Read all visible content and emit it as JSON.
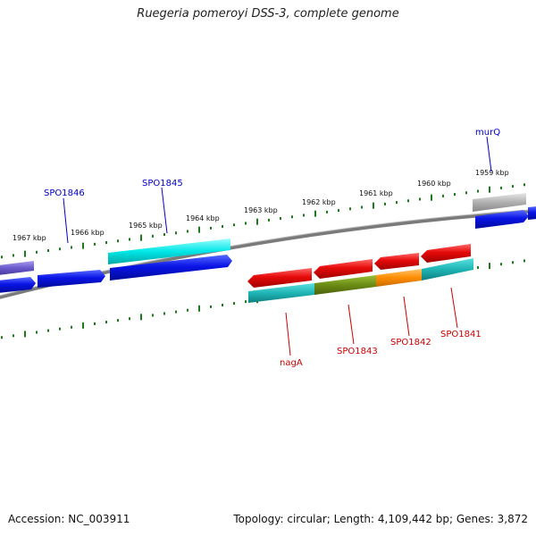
{
  "title": "Ruegeria pomeroyi DSS-3, complete genome",
  "footer": {
    "accession": "Accession: NC_003911",
    "summary": "Topology: circular; Length: 4,109,442 bp; Genes: 3,872"
  },
  "ruler_labels": [
    "1967 kbp",
    "1966 kbp",
    "1965 kbp",
    "1964 kbp",
    "1963 kbp",
    "1962 kbp",
    "1961 kbp",
    "1960 kbp",
    "1959 kbp"
  ],
  "gene_labels": [
    {
      "text": "SPO1846",
      "strand": "forward",
      "color": "#0000cc"
    },
    {
      "text": "SPO1845",
      "strand": "forward",
      "color": "#0000cc"
    },
    {
      "text": "murQ",
      "strand": "forward",
      "color": "#0000cc"
    },
    {
      "text": "nagA",
      "strand": "reverse",
      "color": "#cc0000"
    },
    {
      "text": "SPO1843",
      "strand": "reverse",
      "color": "#cc0000"
    },
    {
      "text": "SPO1842",
      "strand": "reverse",
      "color": "#cc0000"
    },
    {
      "text": "SPO1841",
      "strand": "reverse",
      "color": "#cc0000"
    }
  ],
  "colors": {
    "forward_cds": "#0a14e6",
    "reverse_cds": "#e60a0a",
    "backbone": "#7a7a7a",
    "ticks": "#1f7a1f",
    "cyan": "#00e6e6",
    "teal": "#1fb5b5",
    "olive": "#6b8c14",
    "orange": "#ff8c00",
    "gray": "#b0b0b0",
    "purple": "#6a5acd"
  }
}
